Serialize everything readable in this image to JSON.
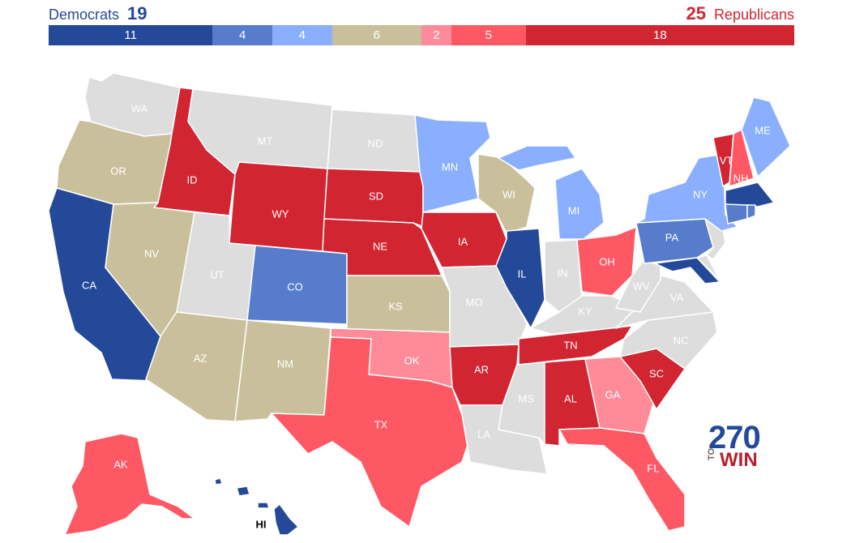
{
  "header": {
    "dem_label": "Democrats",
    "dem_total": "19",
    "rep_label": "Republicans",
    "rep_total": "25"
  },
  "rating_bar": [
    {
      "key": "safe_dem",
      "count": 11,
      "label": "11",
      "color": "#244999"
    },
    {
      "key": "likely_dem",
      "count": 4,
      "label": "4",
      "color": "#577ccc"
    },
    {
      "key": "lean_dem",
      "count": 4,
      "label": "4",
      "color": "#8aafff"
    },
    {
      "key": "tossup",
      "count": 6,
      "label": "6",
      "color": "#c9c09b"
    },
    {
      "key": "lean_rep",
      "count": 2,
      "label": "2",
      "color": "#ff8b98"
    },
    {
      "key": "likely_rep",
      "count": 5,
      "label": "5",
      "color": "#ff5865"
    },
    {
      "key": "safe_rep",
      "count": 18,
      "label": "18",
      "color": "#d22532"
    }
  ],
  "colors": {
    "safe_dem": "#244999",
    "likely_dem": "#577ccc",
    "lean_dem": "#8aafff",
    "tossup": "#c9c09b",
    "lean_rep": "#ff8b98",
    "likely_rep": "#ff5865",
    "safe_rep": "#d22532",
    "none": "#dddddd"
  },
  "states": {
    "WA": "none",
    "OR": "tossup",
    "CA": "safe_dem",
    "ID": "safe_rep",
    "NV": "tossup",
    "MT": "none",
    "WY": "safe_rep",
    "UT": "none",
    "AZ": "tossup",
    "CO": "likely_dem",
    "NM": "tossup",
    "ND": "none",
    "SD": "safe_rep",
    "NE": "safe_rep",
    "KS": "tossup",
    "OK": "lean_rep",
    "TX": "likely_rep",
    "MN": "lean_dem",
    "IA": "safe_rep",
    "MO": "none",
    "AR": "safe_rep",
    "LA": "none",
    "WI": "tossup",
    "IL": "safe_dem",
    "MI": "lean_dem",
    "IN": "none",
    "OH": "likely_rep",
    "KY": "none",
    "TN": "safe_rep",
    "MS": "none",
    "AL": "safe_rep",
    "GA": "lean_rep",
    "FL": "likely_rep",
    "SC": "safe_rep",
    "NC": "none",
    "VA": "none",
    "WV": "none",
    "PA": "likely_dem",
    "NY": "lean_dem",
    "VT": "safe_rep",
    "NH": "likely_rep",
    "ME": "lean_dem",
    "MA": "safe_dem",
    "CT": "likely_dem",
    "RI": "likely_dem",
    "NJ": "none",
    "DE": "none",
    "MD": "safe_dem",
    "AK": "likely_rep",
    "HI": "safe_dem"
  },
  "labels": {
    "WA": "WA",
    "OR": "OR",
    "CA": "CA",
    "ID": "ID",
    "NV": "NV",
    "MT": "MT",
    "WY": "WY",
    "UT": "UT",
    "AZ": "AZ",
    "CO": "CO",
    "NM": "NM",
    "ND": "ND",
    "SD": "SD",
    "NE": "NE",
    "KS": "KS",
    "OK": "OK",
    "TX": "TX",
    "MN": "MN",
    "IA": "IA",
    "MO": "MO",
    "AR": "AR",
    "LA": "LA",
    "WI": "WI",
    "IL": "IL",
    "MI": "MI",
    "IN": "IN",
    "OH": "OH",
    "KY": "KY",
    "TN": "TN",
    "MS": "MS",
    "AL": "AL",
    "GA": "GA",
    "FL": "FL",
    "SC": "SC",
    "NC": "NC",
    "VA": "VA",
    "WV": "WV",
    "PA": "PA",
    "NY": "NY",
    "VT": "VT",
    "NH": "NH",
    "ME": "ME",
    "AK": "AK",
    "HI": "HI"
  },
  "logo": {
    "number": "270",
    "to": "TO",
    "win": "WIN"
  }
}
